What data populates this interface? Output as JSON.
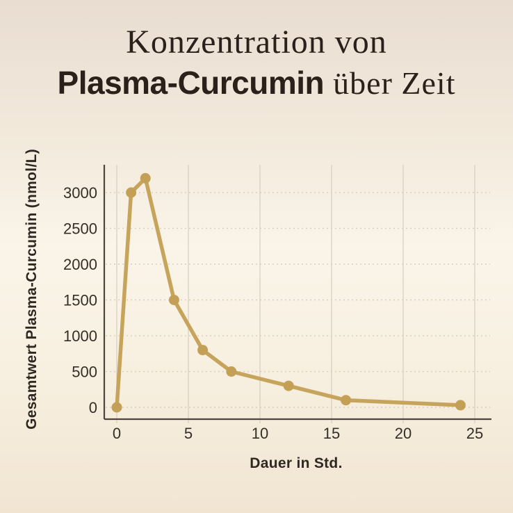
{
  "title": {
    "line1": "Konzentration von",
    "line2_bold": "Plasma-Curcumin",
    "line2_rest": "über Zeit"
  },
  "chart_data": {
    "type": "line",
    "x": [
      0,
      1,
      2,
      4,
      6,
      8,
      12,
      16,
      24
    ],
    "series": [
      {
        "name": "Plasma-Curcumin",
        "values": [
          0,
          3000,
          3200,
          1500,
          800,
          500,
          300,
          100,
          30
        ]
      }
    ],
    "xlabel": "Dauer in Std.",
    "ylabel": "Gesamtwert Plasma-Curcumin (nmol/L)",
    "x_ticks": [
      "0",
      "5",
      "10",
      "15",
      "20",
      "25"
    ],
    "x_tick_values": [
      0,
      5,
      10,
      15,
      20,
      25
    ],
    "y_ticks": [
      "0",
      "500",
      "1000",
      "1500",
      "2000",
      "2500",
      "3000"
    ],
    "y_tick_values": [
      0,
      500,
      1000,
      1500,
      2000,
      2500,
      3000
    ],
    "xlim": [
      0,
      25
    ],
    "ylim": [
      0,
      3400
    ],
    "grid": {
      "vertical": "solid",
      "horizontal": "dotted"
    },
    "legend": "none",
    "marker": "circle"
  },
  "colors": {
    "line": "#c7a45c",
    "marker": "#c4a057",
    "axis": "#4e463e",
    "grid_vertical": "#d8cfc3",
    "grid_horizontal": "#d9cfbd",
    "tick_text": "#352e27",
    "title_text": "#2b211a",
    "background_top": "#e9ddd2",
    "background_mid": "#faf4e9",
    "background_bottom": "#f1e5d2"
  }
}
